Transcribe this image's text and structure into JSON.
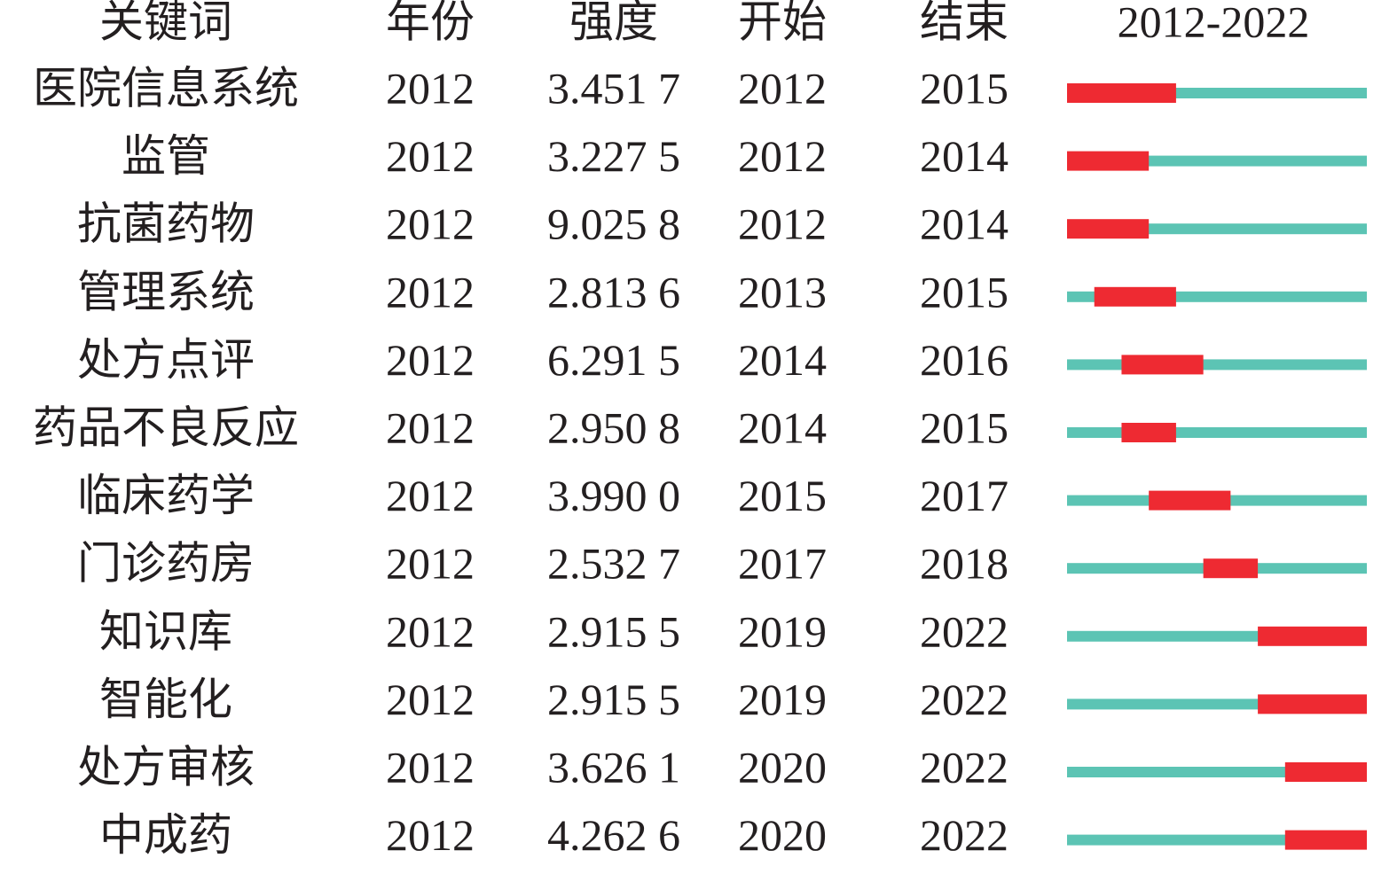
{
  "table": {
    "header": [
      "关键词",
      "年份",
      "强度",
      "开始",
      "结束",
      "2012-2022"
    ],
    "rows": [
      [
        "医院信息系统",
        2012,
        "3.451 7",
        2012,
        2015
      ],
      [
        "监管",
        2012,
        "3.227 5",
        2012,
        2014
      ],
      [
        "抗菌药物",
        2012,
        "9.025 8",
        2012,
        2014
      ],
      [
        "管理系统",
        2012,
        "2.813 6",
        2013,
        2015
      ],
      [
        "处方点评",
        2012,
        "6.291 5",
        2014,
        2016
      ],
      [
        "药品不良反应",
        2012,
        "2.950 8",
        2014,
        2015
      ],
      [
        "临床药学",
        2012,
        "3.990 0",
        2015,
        2017
      ],
      [
        "门诊药房",
        2012,
        "2.532 7",
        2017,
        2018
      ],
      [
        "知识库",
        2012,
        "2.915 5",
        2019,
        2022
      ],
      [
        "智能化",
        2012,
        "2.915 5",
        2019,
        2022
      ],
      [
        "处方审核",
        2012,
        "3.626 1",
        2020,
        2022
      ],
      [
        "中成药",
        2012,
        "4.262 6",
        2020,
        2022
      ]
    ]
  }
}
